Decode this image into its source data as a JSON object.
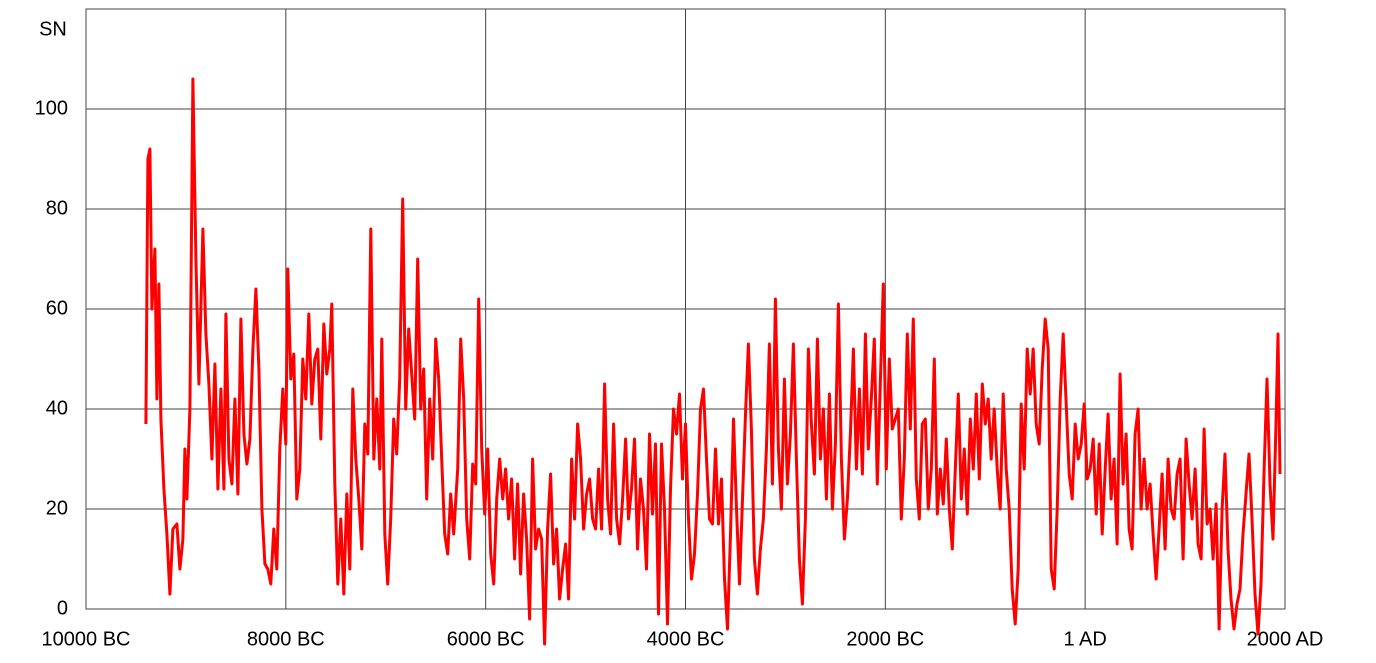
{
  "chart_data": {
    "type": "line",
    "y_label": "SN",
    "xlim": [
      -10000,
      2000
    ],
    "ylim": [
      0,
      120
    ],
    "xticks": [
      {
        "value": -10000,
        "label": "10000 BC"
      },
      {
        "value": -8000,
        "label": "8000 BC"
      },
      {
        "value": -6000,
        "label": "6000 BC"
      },
      {
        "value": -4000,
        "label": "4000 BC"
      },
      {
        "value": -2000,
        "label": "2000 BC"
      },
      {
        "value": 0,
        "label": "1 AD"
      },
      {
        "value": 2000,
        "label": "2000 AD"
      }
    ],
    "yticks": [
      0,
      20,
      40,
      60,
      80,
      100
    ],
    "grid": true,
    "series": [
      {
        "color": "#ff0000",
        "x": [
          -9400,
          -9380,
          -9360,
          -9340,
          -9310,
          -9290,
          -9270,
          -9250,
          -9220,
          -9190,
          -9160,
          -9130,
          -9090,
          -9060,
          -9030,
          -9010,
          -8990,
          -8960,
          -8930,
          -8900,
          -8870,
          -8830,
          -8800,
          -8770,
          -8740,
          -8710,
          -8680,
          -8650,
          -8620,
          -8600,
          -8570,
          -8540,
          -8510,
          -8480,
          -8450,
          -8420,
          -8390,
          -8360,
          -8330,
          -8300,
          -8270,
          -8240,
          -8210,
          -8180,
          -8150,
          -8120,
          -8090,
          -8060,
          -8030,
          -8000,
          -7980,
          -7950,
          -7920,
          -7890,
          -7860,
          -7830,
          -7800,
          -7770,
          -7740,
          -7710,
          -7680,
          -7650,
          -7620,
          -7590,
          -7560,
          -7540,
          -7510,
          -7480,
          -7450,
          -7420,
          -7390,
          -7360,
          -7330,
          -7300,
          -7270,
          -7240,
          -7210,
          -7180,
          -7150,
          -7120,
          -7090,
          -7060,
          -7040,
          -7010,
          -6980,
          -6950,
          -6920,
          -6890,
          -6860,
          -6830,
          -6800,
          -6770,
          -6740,
          -6710,
          -6680,
          -6650,
          -6620,
          -6590,
          -6560,
          -6530,
          -6500,
          -6470,
          -6440,
          -6410,
          -6380,
          -6350,
          -6320,
          -6280,
          -6250,
          -6220,
          -6190,
          -6160,
          -6130,
          -6100,
          -6070,
          -6040,
          -6010,
          -5980,
          -5950,
          -5920,
          -5890,
          -5860,
          -5830,
          -5800,
          -5770,
          -5740,
          -5710,
          -5680,
          -5650,
          -5620,
          -5590,
          -5560,
          -5530,
          -5500,
          -5470,
          -5440,
          -5410,
          -5380,
          -5350,
          -5320,
          -5290,
          -5260,
          -5230,
          -5200,
          -5170,
          -5140,
          -5110,
          -5080,
          -5050,
          -5020,
          -4990,
          -4960,
          -4930,
          -4900,
          -4870,
          -4840,
          -4810,
          -4780,
          -4750,
          -4720,
          -4690,
          -4660,
          -4630,
          -4600,
          -4570,
          -4540,
          -4510,
          -4480,
          -4450,
          -4420,
          -4390,
          -4360,
          -4330,
          -4300,
          -4270,
          -4240,
          -4210,
          -4180,
          -4150,
          -4120,
          -4090,
          -4060,
          -4030,
          -4000,
          -3970,
          -3940,
          -3910,
          -3880,
          -3850,
          -3820,
          -3790,
          -3760,
          -3730,
          -3700,
          -3670,
          -3640,
          -3610,
          -3580,
          -3550,
          -3520,
          -3490,
          -3460,
          -3430,
          -3400,
          -3370,
          -3340,
          -3310,
          -3280,
          -3250,
          -3220,
          -3190,
          -3160,
          -3130,
          -3100,
          -3070,
          -3040,
          -3010,
          -2980,
          -2950,
          -2920,
          -2890,
          -2860,
          -2830,
          -2800,
          -2770,
          -2740,
          -2710,
          -2680,
          -2650,
          -2620,
          -2590,
          -2560,
          -2530,
          -2500,
          -2470,
          -2440,
          -2410,
          -2380,
          -2350,
          -2320,
          -2290,
          -2260,
          -2230,
          -2200,
          -2170,
          -2140,
          -2110,
          -2080,
          -2050,
          -2020,
          -1990,
          -1960,
          -1930,
          -1900,
          -1870,
          -1840,
          -1810,
          -1780,
          -1750,
          -1720,
          -1690,
          -1660,
          -1630,
          -1600,
          -1570,
          -1540,
          -1510,
          -1480,
          -1450,
          -1420,
          -1390,
          -1360,
          -1330,
          -1300,
          -1270,
          -1240,
          -1210,
          -1180,
          -1150,
          -1120,
          -1090,
          -1060,
          -1030,
          -1000,
          -970,
          -940,
          -910,
          -880,
          -850,
          -820,
          -790,
          -760,
          -730,
          -700,
          -670,
          -640,
          -610,
          -580,
          -550,
          -520,
          -490,
          -460,
          -430,
          -400,
          -370,
          -340,
          -310,
          -280,
          -250,
          -220,
          -190,
          -160,
          -130,
          -100,
          -70,
          -40,
          -10,
          20,
          50,
          80,
          110,
          140,
          170,
          200,
          230,
          260,
          290,
          320,
          350,
          380,
          410,
          440,
          470,
          500,
          530,
          560,
          590,
          620,
          650,
          680,
          710,
          740,
          770,
          800,
          830,
          860,
          890,
          920,
          950,
          980,
          1010,
          1040,
          1070,
          1100,
          1130,
          1160,
          1190,
          1220,
          1250,
          1280,
          1310,
          1340,
          1370,
          1400,
          1430,
          1460,
          1490,
          1520,
          1550,
          1580,
          1610,
          1640,
          1670,
          1700,
          1730,
          1760,
          1790,
          1820,
          1850,
          1880,
          1910,
          1930,
          1950
        ],
        "values": [
          37,
          90,
          92,
          60,
          72,
          42,
          65,
          38,
          24,
          15,
          3,
          16,
          17,
          8,
          14,
          32,
          22,
          40,
          106,
          70,
          45,
          76,
          55,
          45,
          30,
          49,
          24,
          44,
          24,
          59,
          30,
          25,
          42,
          23,
          58,
          35,
          29,
          34,
          52,
          64,
          48,
          20,
          9,
          8,
          5,
          16,
          8,
          32,
          44,
          33,
          68,
          46,
          51,
          22,
          28,
          50,
          42,
          59,
          41,
          50,
          52,
          34,
          57,
          47,
          52,
          61,
          25,
          5,
          18,
          3,
          23,
          8,
          44,
          30,
          22,
          12,
          37,
          31,
          76,
          30,
          42,
          28,
          54,
          15,
          5,
          18,
          38,
          31,
          46,
          82,
          40,
          56,
          47,
          38,
          70,
          40,
          48,
          22,
          42,
          30,
          54,
          46,
          30,
          15,
          11,
          23,
          15,
          28,
          54,
          42,
          18,
          10,
          29,
          25,
          62,
          32,
          19,
          32,
          11,
          5,
          22,
          30,
          22,
          28,
          18,
          26,
          10,
          25,
          7,
          23,
          14,
          -2,
          30,
          12,
          16,
          14,
          -7,
          16,
          27,
          9,
          16,
          2,
          8,
          13,
          2,
          30,
          18,
          37,
          30,
          16,
          23,
          26,
          18,
          16,
          28,
          16,
          45,
          22,
          15,
          37,
          18,
          13,
          22,
          34,
          18,
          24,
          34,
          12,
          26,
          20,
          8,
          35,
          19,
          33,
          -1,
          33,
          20,
          -3,
          24,
          40,
          35,
          43,
          26,
          37,
          18,
          6,
          11,
          23,
          40,
          44,
          30,
          18,
          17,
          32,
          17,
          26,
          6,
          -4,
          15,
          38,
          20,
          5,
          22,
          39,
          53,
          36,
          10,
          3,
          12,
          18,
          32,
          53,
          25,
          62,
          32,
          20,
          46,
          25,
          35,
          53,
          30,
          10,
          1,
          18,
          52,
          37,
          27,
          54,
          30,
          40,
          22,
          43,
          20,
          33,
          61,
          30,
          14,
          22,
          35,
          52,
          28,
          44,
          27,
          55,
          32,
          42,
          54,
          25,
          45,
          65,
          28,
          50,
          36,
          38,
          40,
          18,
          30,
          55,
          36,
          58,
          26,
          18,
          37,
          38,
          20,
          28,
          50,
          19,
          28,
          21,
          34,
          20,
          12,
          28,
          43,
          22,
          32,
          19,
          38,
          28,
          43,
          26,
          45,
          37,
          42,
          30,
          40,
          28,
          20,
          43,
          28,
          20,
          4,
          -3,
          8,
          41,
          28,
          52,
          43,
          52,
          37,
          33,
          48,
          58,
          52,
          8,
          4,
          20,
          42,
          55,
          41,
          27,
          22,
          37,
          30,
          33,
          41,
          26,
          28,
          34,
          19,
          33,
          15,
          28,
          39,
          22,
          30,
          13,
          47,
          25,
          35,
          16,
          12,
          35,
          40,
          20,
          30,
          20,
          25,
          15,
          6,
          16,
          27,
          12,
          30,
          20,
          18,
          27,
          30,
          10,
          34,
          25,
          18,
          28,
          13,
          10,
          36,
          17,
          20,
          10,
          21,
          -4,
          20,
          31,
          12,
          2,
          -4,
          1,
          4,
          15,
          23,
          31,
          18,
          3,
          -5,
          5,
          27,
          46,
          25,
          14,
          37,
          55,
          27
        ]
      }
    ]
  }
}
